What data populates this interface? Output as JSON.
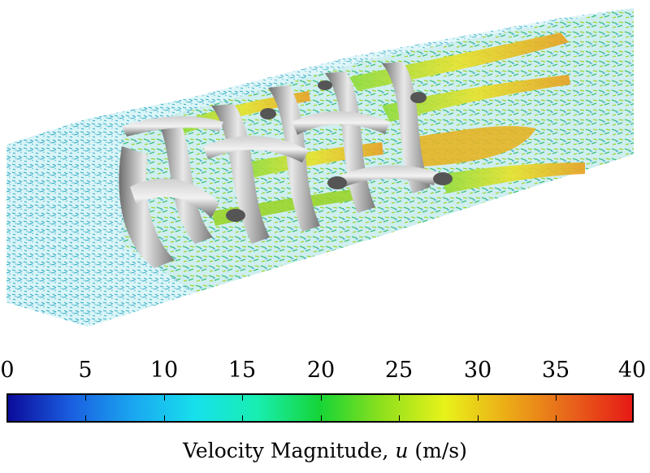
{
  "colorbar": {
    "ticks": [
      "0",
      "5",
      "10",
      "15",
      "20",
      "25",
      "30",
      "35",
      "40"
    ],
    "title_prefix": "Velocity Magnitude, ",
    "title_variable": "u",
    "title_unit": " (m/s)",
    "range": [
      0,
      40
    ],
    "colors": [
      "#0b0b9a",
      "#1a5ee0",
      "#1aa6f0",
      "#17e0ec",
      "#18eeb0",
      "#16d436",
      "#8fe01c",
      "#e8f21a",
      "#ecab17",
      "#e8641a",
      "#e61a16"
    ]
  }
}
